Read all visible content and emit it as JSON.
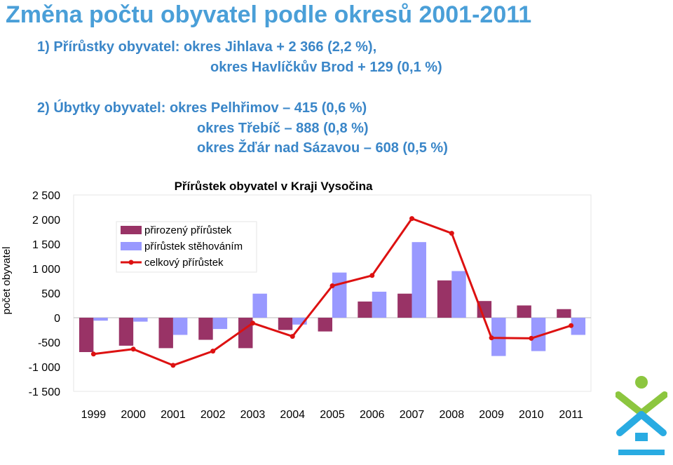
{
  "header": {
    "title": "Změna počtu obyvatel podle okresů 2001-2011",
    "lines": [
      "1) Přírůstky obyvatel: okres Jihlava + 2 366 (2,2 %),",
      "okres Havlíčkův Brod + 129 (0,1 %)",
      "2) Úbytky obyvatel: okres Pelhřimov – 415 (0,6 %)",
      "okres Třebíč – 888 (0,8 %)",
      "okres Žďár nad Sázavou – 608 (0,5 %)"
    ]
  },
  "colors": {
    "title": "#4a9fd8",
    "text": "#3a86c8",
    "natural": "#993366",
    "migration": "#9999ff",
    "total": "#dd1111",
    "logo_green": "#8cc63f",
    "logo_blue": "#29abe2"
  },
  "chart_data": {
    "type": "bar",
    "title": "Přírůstek obyvatel v Kraji Vysočina",
    "ylabel": "počet obyvatel",
    "xlabel": "",
    "categories": [
      "1999",
      "2000",
      "2001",
      "2002",
      "2003",
      "2004",
      "2005",
      "2006",
      "2007",
      "2008",
      "2009",
      "2010",
      "2011"
    ],
    "ylim": [
      -1500,
      2500
    ],
    "yticks": [
      2500,
      2000,
      1500,
      1000,
      500,
      0,
      -500,
      -1000,
      -1500
    ],
    "ytick_labels": [
      "2 500",
      "2 000",
      "1 500",
      "1 000",
      "500",
      "0",
      "-500",
      "-1 000",
      "-1 500"
    ],
    "series": [
      {
        "name": "přirozený přírůstek",
        "type": "bar",
        "values": [
          -700,
          -570,
          -620,
          -450,
          -620,
          -250,
          -280,
          330,
          490,
          760,
          340,
          250,
          175
        ]
      },
      {
        "name": "přírůstek stěhováním",
        "type": "bar",
        "values": [
          -60,
          -80,
          -350,
          -230,
          490,
          -140,
          920,
          530,
          1540,
          950,
          -780,
          -680,
          -350
        ]
      },
      {
        "name": "celkový přírůstek",
        "type": "line",
        "values": [
          -740,
          -640,
          -970,
          -680,
          -110,
          -380,
          650,
          860,
          2020,
          1720,
          -410,
          -420,
          -160
        ]
      }
    ],
    "legend_position": "top-left",
    "grid": false
  }
}
